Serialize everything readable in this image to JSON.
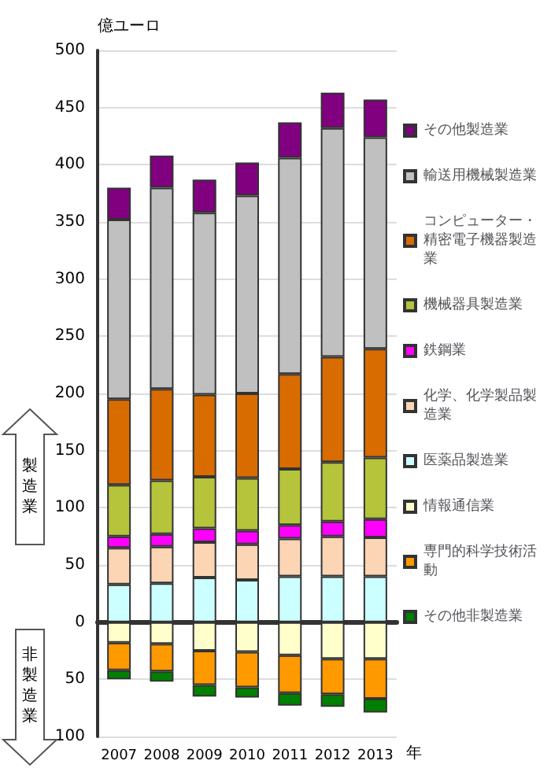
{
  "chart_data": {
    "type": "bar",
    "stacked": true,
    "ylabel": "億ユーロ",
    "xlabel": "年",
    "categories": [
      "2007",
      "2008",
      "2009",
      "2010",
      "2011",
      "2012",
      "2013"
    ],
    "series": [
      {
        "name": "医薬品製造業",
        "color": "#ccffff",
        "values": [
          33,
          34,
          39,
          37,
          40,
          40,
          40
        ]
      },
      {
        "name": "化学、化学製品製造業",
        "color": "#fcd5b4",
        "values": [
          32,
          32,
          31,
          31,
          33,
          35,
          34
        ]
      },
      {
        "name": "鉄鋼業",
        "color": "#ff00ff",
        "values": [
          10,
          11,
          12,
          12,
          12,
          13,
          16
        ]
      },
      {
        "name": "機械器具製造業",
        "color": "#b5c43a",
        "values": [
          45,
          47,
          45,
          46,
          49,
          52,
          54
        ]
      },
      {
        "name": "コンピューター・精密電子機器製造業",
        "color": "#d96c00",
        "values": [
          75,
          80,
          72,
          74,
          83,
          92,
          95
        ]
      },
      {
        "name": "輸送用機械製造業",
        "color": "#c0c0c0",
        "values": [
          157,
          176,
          159,
          173,
          189,
          200,
          185
        ]
      },
      {
        "name": "その他製造業",
        "color": "#800080",
        "values": [
          28,
          28,
          29,
          29,
          31,
          31,
          33
        ]
      },
      {
        "name": "情報通信業",
        "color": "#ffffcc",
        "values": [
          -18,
          -19,
          -25,
          -26,
          -29,
          -32,
          -32
        ]
      },
      {
        "name": "専門的科学技術活動",
        "color": "#ff9900",
        "values": [
          -24,
          -24,
          -30,
          -31,
          -33,
          -31,
          -35
        ]
      },
      {
        "name": "その他非製造業",
        "color": "#008000",
        "values": [
          -8,
          -9,
          -10,
          -9,
          -11,
          -11,
          -12
        ]
      }
    ],
    "ylim": [
      -100,
      500
    ],
    "yticks": [
      {
        "value": -100,
        "label": "100"
      },
      {
        "value": -50,
        "label": "50"
      },
      0,
      50,
      100,
      150,
      200,
      250,
      300,
      350,
      400,
      450,
      500
    ],
    "grid": "y",
    "legend": "right",
    "annotations": [
      "製造業",
      "非製造業"
    ]
  }
}
